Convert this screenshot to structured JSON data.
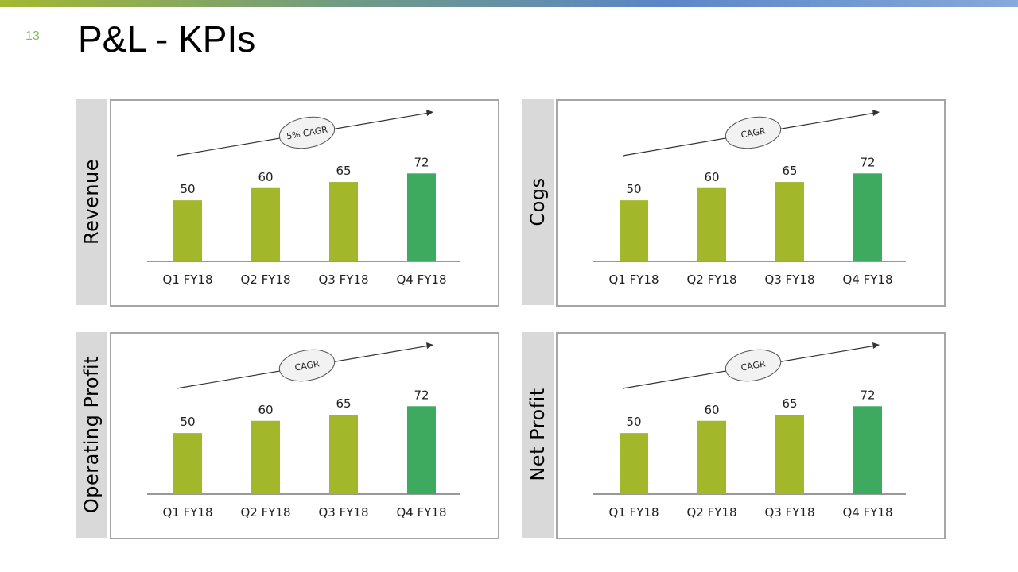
{
  "slide": {
    "number": "13",
    "title": "P&L - KPIs"
  },
  "colors": {
    "bar": "#a3b72a",
    "bar_highlight": "#3daa5f"
  },
  "chart_data": [
    {
      "type": "bar",
      "title": "Revenue",
      "categories": [
        "Q1 FY18",
        "Q2 FY18",
        "Q3 FY18",
        "Q4 FY18"
      ],
      "values": [
        50,
        60,
        65,
        72
      ],
      "ylim": [
        0,
        80
      ],
      "grid": false,
      "annotation": "5% CAGR"
    },
    {
      "type": "bar",
      "title": "Cogs",
      "categories": [
        "Q1 FY18",
        "Q2 FY18",
        "Q3 FY18",
        "Q4 FY18"
      ],
      "values": [
        50,
        60,
        65,
        72
      ],
      "ylim": [
        0,
        80
      ],
      "grid": false,
      "annotation": "CAGR"
    },
    {
      "type": "bar",
      "title": "Operating Profit",
      "categories": [
        "Q1 FY18",
        "Q2 FY18",
        "Q3 FY18",
        "Q4 FY18"
      ],
      "values": [
        50,
        60,
        65,
        72
      ],
      "ylim": [
        0,
        80
      ],
      "grid": false,
      "annotation": "CAGR"
    },
    {
      "type": "bar",
      "title": "Net Profit",
      "categories": [
        "Q1 FY18",
        "Q2 FY18",
        "Q3 FY18",
        "Q4 FY18"
      ],
      "values": [
        50,
        60,
        65,
        72
      ],
      "ylim": [
        0,
        80
      ],
      "grid": false,
      "annotation": "CAGR"
    }
  ]
}
